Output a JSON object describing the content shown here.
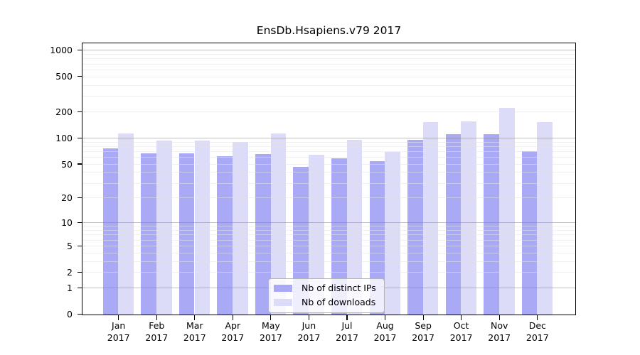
{
  "chart_data": {
    "type": "bar",
    "title": "EnsDb.Hsapiens.v79 2017",
    "months": [
      "Jan",
      "Feb",
      "Mar",
      "Apr",
      "May",
      "Jun",
      "Jul",
      "Aug",
      "Sep",
      "Oct",
      "Nov",
      "Dec"
    ],
    "year_label": "2017",
    "series": [
      {
        "name": "Nb of distinct IPs",
        "color": "#a9a9f5",
        "values": [
          76,
          67,
          67,
          62,
          66,
          47,
          59,
          54,
          96,
          110,
          110,
          70
        ]
      },
      {
        "name": "Nb of downloads",
        "color": "#dcdcf8",
        "values": [
          112,
          94,
          94,
          91,
          112,
          64,
          96,
          69,
          152,
          155,
          222,
          152
        ]
      }
    ],
    "yscale": "log1p",
    "yticks": [
      0,
      1,
      2,
      5,
      10,
      20,
      50,
      100,
      200,
      500,
      1000
    ],
    "grid_major": [
      1,
      10,
      100,
      1000
    ],
    "ylim": [
      0,
      1300
    ],
    "grid": true,
    "legend_position": "bottom-center",
    "axis_color": "#000000",
    "background_color": "#ffffff"
  }
}
